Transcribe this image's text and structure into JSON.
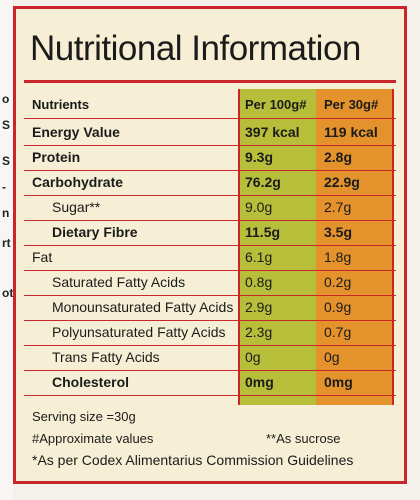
{
  "left_margin_fragments": [
    "o",
    "S",
    "S",
    "-",
    "n",
    "rt",
    "ot"
  ],
  "title": "Nutritional Information",
  "headers": {
    "nutrients": "Nutrients",
    "per100": "Per 100g#",
    "per30": "Per 30g#"
  },
  "rows": [
    {
      "name": "Energy Value",
      "per100": "397 kcal",
      "per30": "119 kcal",
      "bold": true,
      "indent": false
    },
    {
      "name": "Protein",
      "per100": "9.3g",
      "per30": "2.8g",
      "bold": true,
      "indent": false
    },
    {
      "name": "Carbohydrate",
      "per100": "76.2g",
      "per30": "22.9g",
      "bold": true,
      "indent": false
    },
    {
      "name": "Sugar**",
      "per100": "9.0g",
      "per30": "2.7g",
      "bold": false,
      "indent": true
    },
    {
      "name": "Dietary Fibre",
      "per100": "11.5g",
      "per30": "3.5g",
      "bold": true,
      "indent": true
    },
    {
      "name": "Fat",
      "per100": "6.1g",
      "per30": "1.8g",
      "bold": false,
      "indent": false
    },
    {
      "name": "Saturated Fatty Acids",
      "per100": "0.8g",
      "per30": "0.2g",
      "bold": false,
      "indent": true
    },
    {
      "name": "Monounsaturated Fatty Acids",
      "per100": "2.9g",
      "per30": "0.9g",
      "bold": false,
      "indent": true
    },
    {
      "name": "Polyunsaturated Fatty Acids",
      "per100": "2.3g",
      "per30": "0.7g",
      "bold": false,
      "indent": true
    },
    {
      "name": "Trans Fatty Acids",
      "per100": "0g",
      "per30": "0g",
      "bold": false,
      "indent": true
    },
    {
      "name": "Cholesterol",
      "per100": "0mg",
      "per30": "0mg",
      "bold": true,
      "indent": true
    }
  ],
  "footer": {
    "serving_size": "Serving size =30g",
    "approx": "#Approximate values",
    "sucrose": "**As sucrose",
    "codex": "*As per Codex Alimentarius Commission Guidelines"
  },
  "colors": {
    "border": "#c9262c",
    "per100_column": "#b7bf3a",
    "per30_column": "#e4922c",
    "panel": "#f6efd5"
  }
}
